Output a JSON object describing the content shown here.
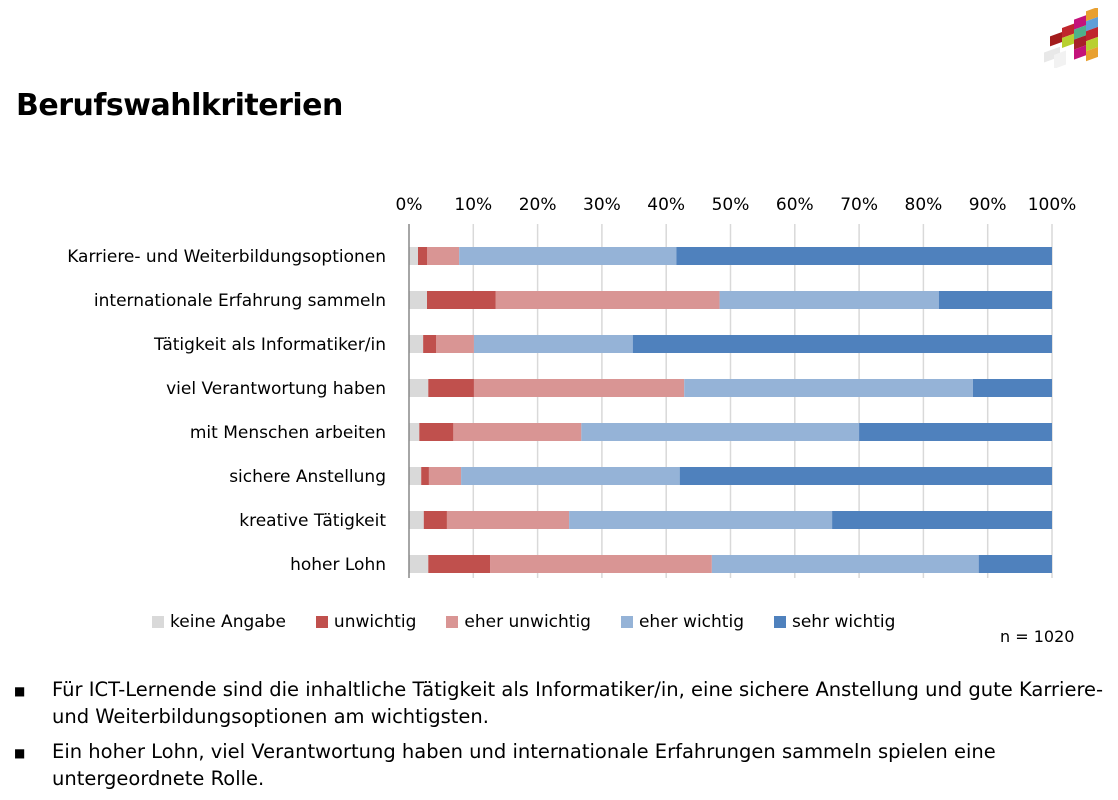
{
  "header": {
    "title": "Berufswahlkriterien",
    "logo": "colorful-cross-cube-logo"
  },
  "chart_data": {
    "type": "bar",
    "orientation": "horizontal",
    "stacked": "percent",
    "title": "",
    "xlabel": "",
    "ylabel": "",
    "xlim": [
      0,
      100
    ],
    "x_ticks": [
      "0%",
      "10%",
      "20%",
      "30%",
      "40%",
      "50%",
      "60%",
      "70%",
      "80%",
      "90%",
      "100%"
    ],
    "x_axis_position": "top",
    "grid": true,
    "legend_position": "bottom",
    "categories": [
      "Karriere- und Weiterbildungsoptionen",
      "internationale Erfahrung sammeln",
      "Tätigkeit als Informatiker/in",
      "viel Verantwortung haben",
      "mit Menschen arbeiten",
      "sichere Anstellung",
      "kreative Tätigkeit",
      "hoher Lohn"
    ],
    "series": [
      {
        "name": "keine Angabe",
        "color": "#d9d9d9",
        "values": [
          1.4,
          2.8,
          2.2,
          3.0,
          1.6,
          1.9,
          2.3,
          3.0
        ]
      },
      {
        "name": "unwichtig",
        "color": "#c0504d",
        "values": [
          1.4,
          10.7,
          2.0,
          7.1,
          5.3,
          1.2,
          3.6,
          9.6
        ]
      },
      {
        "name": "eher unwichtig",
        "color": "#d99594",
        "values": [
          5.0,
          34.8,
          5.9,
          32.7,
          19.9,
          5.0,
          19.0,
          34.5
        ]
      },
      {
        "name": "eher wichtig",
        "color": "#95b3d7",
        "values": [
          33.8,
          34.1,
          24.7,
          44.9,
          43.2,
          34.0,
          40.9,
          41.5
        ]
      },
      {
        "name": "sehr wichtig",
        "color": "#4f81bd",
        "values": [
          58.4,
          17.6,
          65.2,
          12.3,
          30.0,
          57.9,
          34.2,
          11.4
        ]
      }
    ],
    "annotation": "n = 1020"
  },
  "bullets": [
    "Für ICT-Lernende sind die inhaltliche Tätigkeit als Informatiker/in, eine sichere Anstellung und gute Karriere- und Weiterbildungsoptionen am wichtigsten.",
    "Ein hoher Lohn, viel Verantwortung haben und internationale Erfahrungen sammeln spielen eine untergeordnete Rolle."
  ]
}
